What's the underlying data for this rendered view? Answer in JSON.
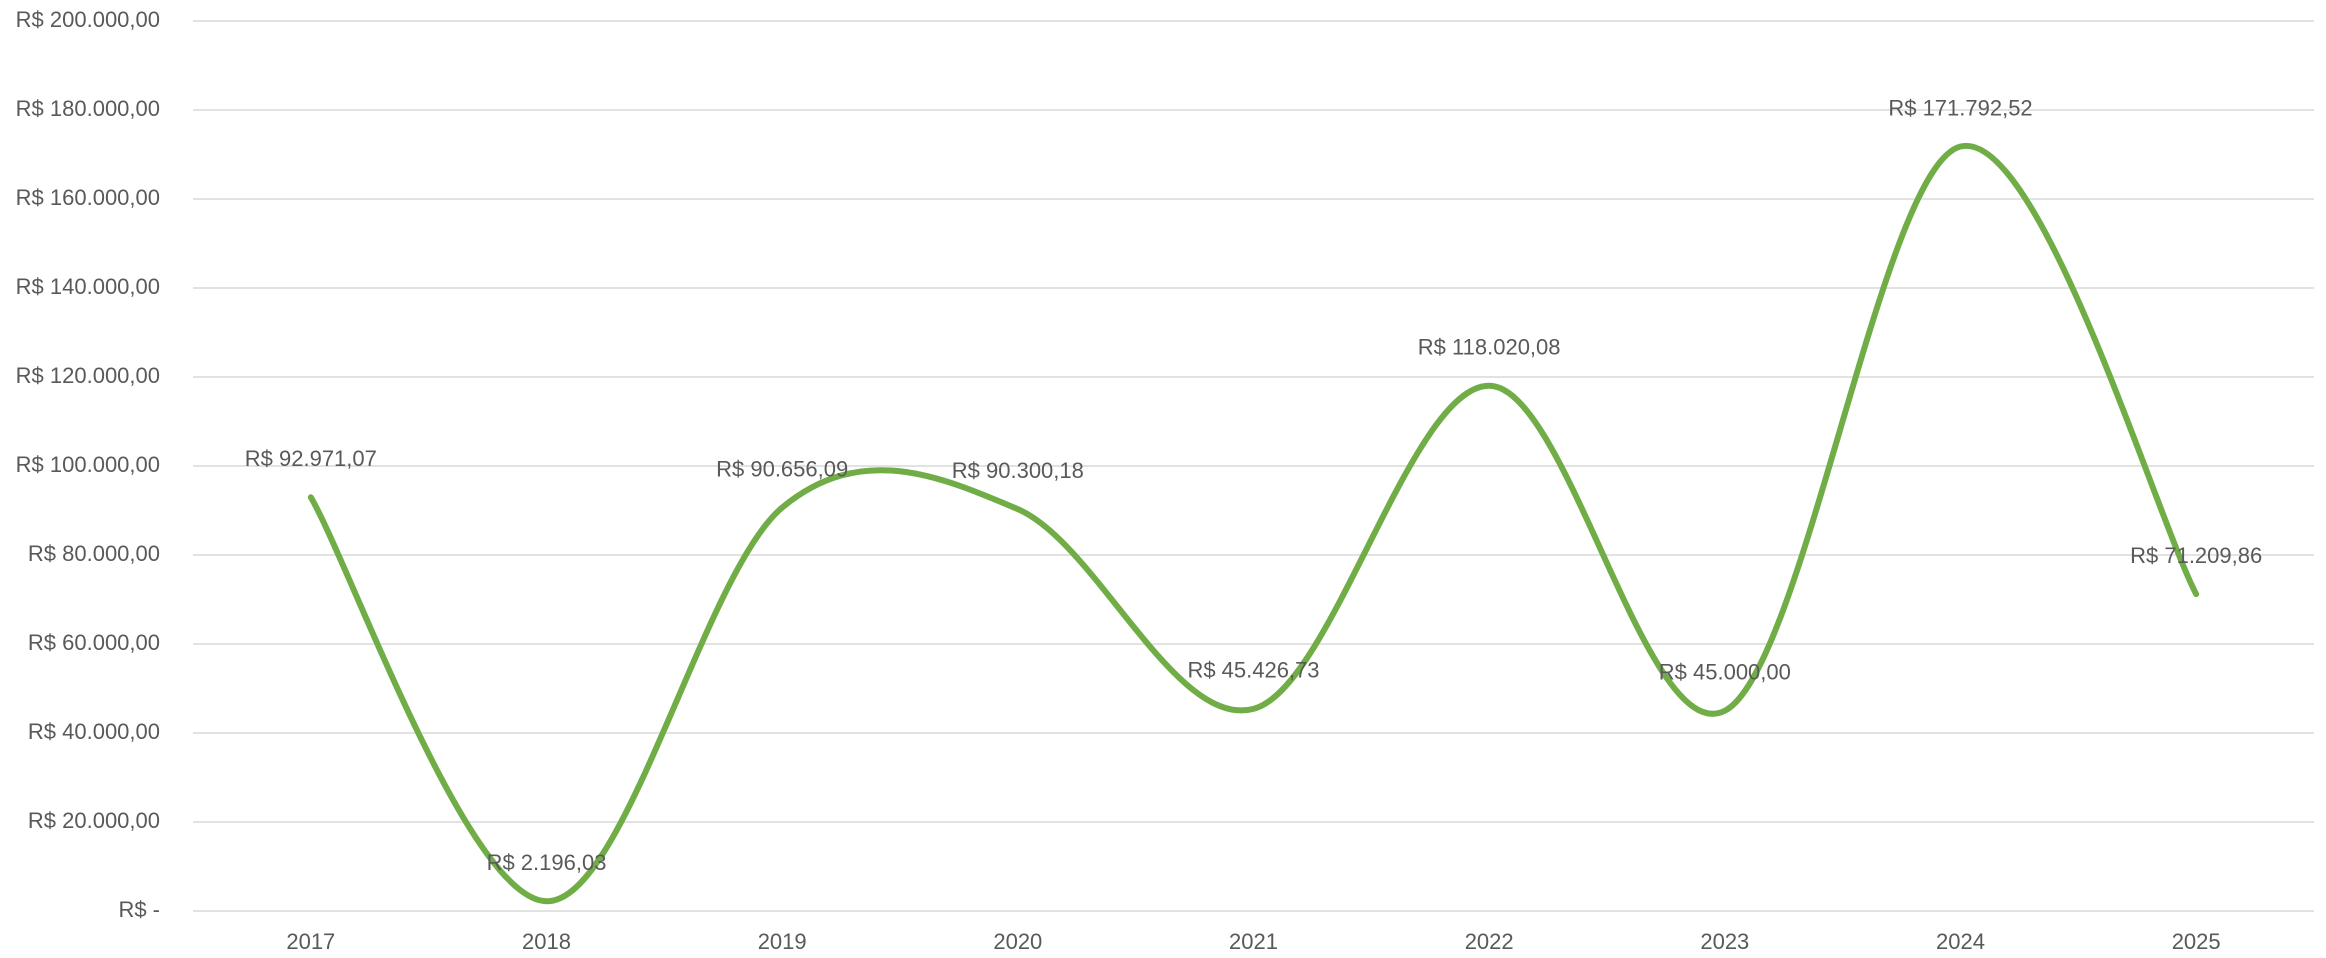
{
  "chart_data": {
    "type": "line",
    "categories": [
      "2017",
      "2018",
      "2019",
      "2020",
      "2021",
      "2022",
      "2023",
      "2024",
      "2025"
    ],
    "values": [
      92971.07,
      2196.03,
      90656.09,
      90300.18,
      45426.73,
      118020.08,
      45000.0,
      171792.52,
      71209.86
    ],
    "value_labels": [
      "R$ 92.971,07",
      "R$ 2.196,03",
      "R$ 90.656,09",
      "R$ 90.300,18",
      "R$ 45.426,73",
      "R$ 118.020,08",
      "R$ 45.000,00",
      "R$ 171.792,52",
      "R$ 71.209,86"
    ],
    "color": "#70ad47",
    "smooth": true,
    "ylim": [
      0,
      200000
    ],
    "yticks": [
      {
        "value": 0,
        "label": "R$ -"
      },
      {
        "value": 20000,
        "label": "R$ 20.000,00"
      },
      {
        "value": 40000,
        "label": "R$ 40.000,00"
      },
      {
        "value": 60000,
        "label": "R$ 60.000,00"
      },
      {
        "value": 80000,
        "label": "R$ 80.000,00"
      },
      {
        "value": 100000,
        "label": "R$ 100.000,00"
      },
      {
        "value": 120000,
        "label": "R$ 120.000,00"
      },
      {
        "value": 140000,
        "label": "R$ 140.000,00"
      },
      {
        "value": 160000,
        "label": "R$ 160.000,00"
      },
      {
        "value": 180000,
        "label": "R$ 180.000,00"
      },
      {
        "value": 200000,
        "label": "R$ 200.000,00"
      }
    ],
    "grid": true
  }
}
